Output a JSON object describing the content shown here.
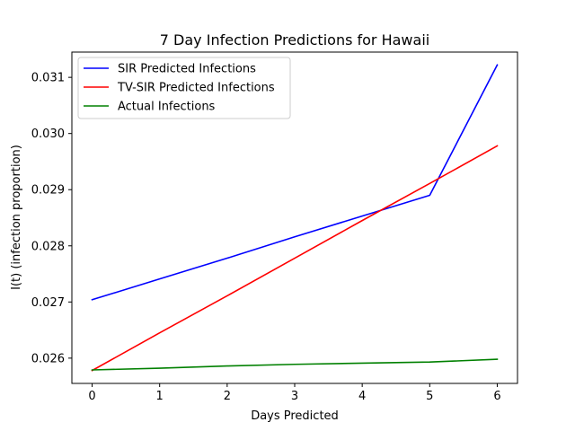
{
  "chart_data": {
    "type": "line",
    "title": "7 Day Infection Predictions for Hawaii",
    "xlabel": "Days Predicted",
    "ylabel": "I(t) (infection proportion)",
    "xlim": [
      -0.3,
      6.3
    ],
    "ylim": [
      0.02555,
      0.03145
    ],
    "x": [
      0,
      1,
      2,
      3,
      4,
      5,
      6
    ],
    "xticks": [
      0,
      1,
      2,
      3,
      4,
      5,
      6
    ],
    "yticks": [
      0.026,
      0.027,
      0.028,
      0.029,
      0.03,
      0.031
    ],
    "ytick_labels": [
      "0.026",
      "0.027",
      "0.028",
      "0.029",
      "0.030",
      "0.031"
    ],
    "grid": false,
    "legend_position": "top-left",
    "series": [
      {
        "name": "SIR Predicted Infections",
        "color": "#0000ff",
        "values": [
          0.02704,
          0.02741,
          0.02778,
          0.02816,
          0.02853,
          0.0289,
          0.03122
        ]
      },
      {
        "name": "TV-SIR Predicted Infections",
        "color": "#ff0000",
        "values": [
          0.02578,
          0.02645,
          0.02711,
          0.02778,
          0.02845,
          0.02911,
          0.02978
        ]
      },
      {
        "name": "Actual Infections",
        "color": "#008000",
        "values": [
          0.02579,
          0.02582,
          0.02586,
          0.02589,
          0.02591,
          0.02593,
          0.02598
        ]
      }
    ]
  }
}
